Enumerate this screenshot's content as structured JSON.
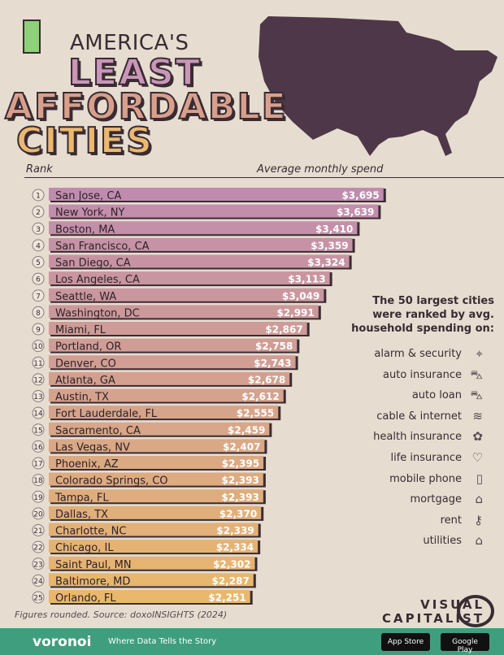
{
  "title": {
    "line1": "AMERICA'S",
    "line2": "LEAST",
    "line3": "AFFORDABLE",
    "line4": "CITIES"
  },
  "headers": {
    "rank": "Rank",
    "spend": "Average monthly spend"
  },
  "chart_data": {
    "type": "bar",
    "orientation": "horizontal",
    "categories": [
      "San Jose, CA",
      "New York, NY",
      "Boston, MA",
      "San Francisco, CA",
      "San Diego, CA",
      "Los Angeles, CA",
      "Seattle, WA",
      "Washington, DC",
      "Miami, FL",
      "Portland, OR",
      "Denver, CO",
      "Atlanta, GA",
      "Austin, TX",
      "Fort Lauderdale, FL",
      "Sacramento, CA",
      "Las Vegas, NV",
      "Phoenix, AZ",
      "Colorado Springs, CO",
      "Tampa, FL",
      "Dallas, TX",
      "Charlotte, NC",
      "Chicago, IL",
      "Saint Paul, MN",
      "Baltimore, MD",
      "Orlando, FL"
    ],
    "values": [
      3695,
      3639,
      3410,
      3359,
      3324,
      3113,
      3049,
      2991,
      2867,
      2758,
      2743,
      2678,
      2612,
      2555,
      2459,
      2407,
      2395,
      2393,
      2393,
      2370,
      2339,
      2334,
      2302,
      2287,
      2251
    ],
    "labels": [
      "$3,695",
      "$3,639",
      "$3,410",
      "$3,359",
      "$3,324",
      "$3,113",
      "$3,049",
      "$2,991",
      "$2,867",
      "$2,758",
      "$2,743",
      "$2,678",
      "$2,612",
      "$2,555",
      "$2,459",
      "$2,407",
      "$2,395",
      "$2,393",
      "$2,393",
      "$2,370",
      "$2,339",
      "$2,334",
      "$2,302",
      "$2,287",
      "$2,251"
    ],
    "ranks": [
      "1",
      "2",
      "3",
      "4",
      "5",
      "6",
      "7",
      "8",
      "9",
      "10",
      "11",
      "12",
      "13",
      "14",
      "15",
      "16",
      "17",
      "18",
      "19",
      "20",
      "21",
      "22",
      "23",
      "24",
      "25"
    ],
    "color_start": "#c08cae",
    "color_end": "#e9b86c"
  },
  "legend": {
    "title_lines": [
      "The 50 largest cities",
      "were ranked by avg.",
      "household spending on:"
    ],
    "items": [
      {
        "label": "alarm & security",
        "icon": "camera-icon"
      },
      {
        "label": "auto insurance",
        "icon": "car-icon"
      },
      {
        "label": "auto loan",
        "icon": "car-icon"
      },
      {
        "label": "cable & internet",
        "icon": "wifi-icon"
      },
      {
        "label": "health insurance",
        "icon": "hands-icon"
      },
      {
        "label": "life insurance",
        "icon": "heart-icon"
      },
      {
        "label": "mobile phone",
        "icon": "phone-icon"
      },
      {
        "label": "mortgage",
        "icon": "house-icon"
      },
      {
        "label": "rent",
        "icon": "key-icon"
      },
      {
        "label": "utilities",
        "icon": "utilities-icon"
      }
    ]
  },
  "source": "Figures rounded. Source: doxoINSIGHTS (2024)",
  "brand": {
    "vc_line1": "VISUAL",
    "vc_line2": "CAPITALIST",
    "voronoi": "voronoi",
    "tagline": "Where Data Tells the Story",
    "app_store": "App Store",
    "google_play": "Google Play"
  }
}
